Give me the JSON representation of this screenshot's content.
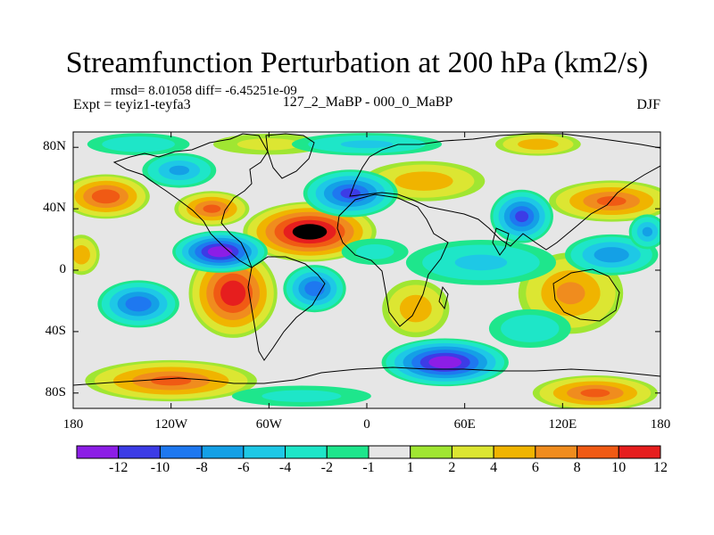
{
  "title": "Streamfunction Perturbation at 200 hPa (km2/s)",
  "stats_line": "rmsd= 8.01058 diff= -6.45251e-09",
  "left_label": "Expt = teyiz1-teyfa3",
  "center_label": "127_2_MaBP - 000_0_MaBP",
  "right_label": "DJF",
  "chart_data": {
    "type": "heatmap",
    "projection": "cylindrical equidistant",
    "x_ticks": [
      "180",
      "120W",
      "60W",
      "0",
      "60E",
      "120E",
      "180"
    ],
    "y_ticks": [
      "80N",
      "40N",
      "0",
      "40S",
      "80S"
    ],
    "xlim": [
      -180,
      180
    ],
    "ylim": [
      -90,
      90
    ],
    "colorbar_labels": [
      "-12",
      "-10",
      "-8",
      "-6",
      "-4",
      "-2",
      "-1",
      "1",
      "2",
      "4",
      "6",
      "8",
      "10",
      "12"
    ],
    "colorbar_colors": [
      "#8c1ee6",
      "#3c3ce6",
      "#1e78f0",
      "#14a0e6",
      "#1ec8e6",
      "#1ee6c8",
      "#1ee68c",
      "#e6e6e6",
      "#a0e632",
      "#dce632",
      "#f0b400",
      "#f08c1e",
      "#f05a14",
      "#e61e1e"
    ],
    "features": [
      {
        "lon": -35,
        "lat": 25,
        "value": 14,
        "rx": 42,
        "ry": 20
      },
      {
        "lon": -82,
        "lat": -15,
        "value": 12,
        "rx": 28,
        "ry": 30
      },
      {
        "lon": -120,
        "lat": -72,
        "value": 9,
        "rx": 55,
        "ry": 14
      },
      {
        "lon": -160,
        "lat": 48,
        "value": 10,
        "rx": 28,
        "ry": 15
      },
      {
        "lon": -95,
        "lat": 40,
        "value": 9,
        "rx": 24,
        "ry": 12
      },
      {
        "lon": 35,
        "lat": 58,
        "value": 6,
        "rx": 40,
        "ry": 14
      },
      {
        "lon": 30,
        "lat": -25,
        "value": 6,
        "rx": 22,
        "ry": 20
      },
      {
        "lon": 150,
        "lat": 45,
        "value": 9,
        "rx": 40,
        "ry": 14
      },
      {
        "lon": 125,
        "lat": -15,
        "value": 7,
        "rx": 34,
        "ry": 28
      },
      {
        "lon": 140,
        "lat": -80,
        "value": 9,
        "rx": 40,
        "ry": 12
      },
      {
        "lon": -175,
        "lat": 10,
        "value": 6,
        "rx": 12,
        "ry": 14
      },
      {
        "lon": 105,
        "lat": 82,
        "value": 6,
        "rx": 28,
        "ry": 8
      },
      {
        "lon": -60,
        "lat": 82,
        "value": 3,
        "rx": 40,
        "ry": 8
      },
      {
        "lon": -90,
        "lat": 12,
        "value": -14,
        "rx": 30,
        "ry": 14
      },
      {
        "lon": -10,
        "lat": 50,
        "value": -11,
        "rx": 30,
        "ry": 16
      },
      {
        "lon": -32,
        "lat": -12,
        "value": -10,
        "rx": 20,
        "ry": 16
      },
      {
        "lon": -140,
        "lat": -22,
        "value": -10,
        "rx": 26,
        "ry": 16
      },
      {
        "lon": 48,
        "lat": -60,
        "value": -14,
        "rx": 40,
        "ry": 16
      },
      {
        "lon": 95,
        "lat": 35,
        "value": -11,
        "rx": 20,
        "ry": 18
      },
      {
        "lon": -115,
        "lat": 65,
        "value": -7,
        "rx": 24,
        "ry": 12
      },
      {
        "lon": 70,
        "lat": 5,
        "value": -5,
        "rx": 50,
        "ry": 16
      },
      {
        "lon": 150,
        "lat": 10,
        "value": -8,
        "rx": 30,
        "ry": 14
      },
      {
        "lon": 0,
        "lat": 82,
        "value": -5,
        "rx": 50,
        "ry": 8
      },
      {
        "lon": 172,
        "lat": 25,
        "value": -7,
        "rx": 12,
        "ry": 12
      },
      {
        "lon": -140,
        "lat": 82,
        "value": -4,
        "rx": 35,
        "ry": 8
      },
      {
        "lon": 100,
        "lat": -38,
        "value": -4,
        "rx": 28,
        "ry": 14
      },
      {
        "lon": -40,
        "lat": -82,
        "value": -3,
        "rx": 50,
        "ry": 8
      },
      {
        "lon": 5,
        "lat": 12,
        "value": -3,
        "rx": 24,
        "ry": 10
      }
    ]
  }
}
